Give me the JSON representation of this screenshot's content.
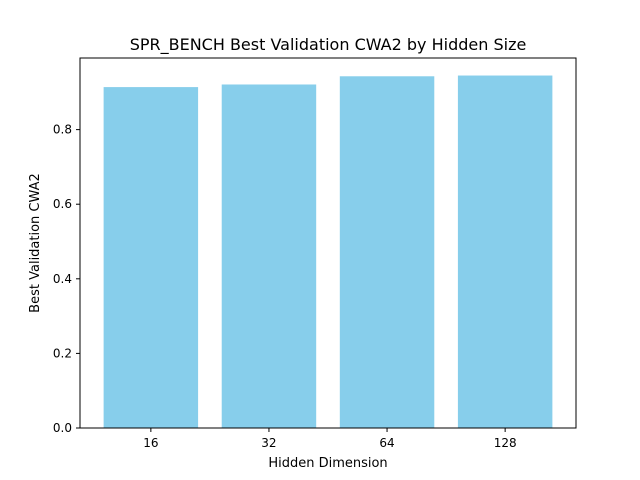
{
  "chart_data": {
    "type": "bar",
    "title": "SPR_BENCH Best Validation CWA2 by Hidden Size",
    "xlabel": "Hidden Dimension",
    "ylabel": "Best Validation CWA2",
    "categories": [
      "16",
      "32",
      "64",
      "128"
    ],
    "values": [
      0.914,
      0.921,
      0.943,
      0.945
    ],
    "ylim": [
      0,
      0.992
    ],
    "yticks": [
      {
        "value": 0.0,
        "label": "0.0"
      },
      {
        "value": 0.2,
        "label": "0.2"
      },
      {
        "value": 0.4,
        "label": "0.4"
      },
      {
        "value": 0.6,
        "label": "0.6"
      },
      {
        "value": 0.8,
        "label": "0.8"
      }
    ],
    "bar_color": "#87ceeb",
    "grid": false,
    "legend": "none"
  }
}
